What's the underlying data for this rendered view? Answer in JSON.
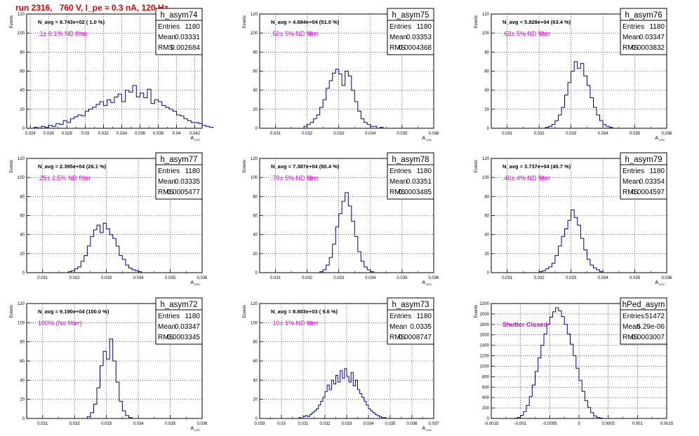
{
  "page": {
    "run_title": "run 2316,   760 V, I_pe ≈ 0.3 nA, 120 Hz"
  },
  "colors": {
    "histogram_line": "#000099",
    "annotation_magenta": "#e000e0",
    "title_red": "#e00000"
  },
  "chart_data": [
    {
      "type": "bar",
      "name": "h_asym74",
      "stats": {
        "Entries": "1180",
        "Mean": "0.03331",
        "RMS": "0.002684"
      },
      "navg_text": "N_avg = 8.743e+02 ( 1.0 %)",
      "filter_text": ".1± 0.1% ND filter",
      "ylabel": "Events",
      "xlabel": "A_{LED}",
      "xlim": [
        0.0236,
        0.0428
      ],
      "ylim": [
        0,
        120
      ],
      "xticks": [
        0.024,
        0.026,
        0.028,
        0.03,
        0.032,
        0.034,
        0.036,
        0.038,
        0.04,
        0.042
      ],
      "xticklabels": [
        "0.024",
        "0.026",
        "0.028",
        "0.03",
        "0.032",
        "0.034",
        "0.036",
        "0.038",
        "0.04",
        "0.042"
      ],
      "yticks": [
        0,
        20,
        40,
        60,
        80,
        100,
        120
      ],
      "grid": true,
      "bin_start": 0.0244,
      "bin_width": 0.0004,
      "values": [
        1,
        0,
        2,
        1,
        3,
        2,
        5,
        4,
        8,
        6,
        10,
        12,
        14,
        13,
        18,
        20,
        22,
        25,
        28,
        24,
        30,
        27,
        33,
        36,
        28,
        40,
        38,
        45,
        33,
        37,
        32,
        41,
        26,
        30,
        28,
        24,
        22,
        20,
        18,
        14,
        13,
        10,
        8,
        6,
        6,
        5,
        3,
        2,
        1
      ]
    },
    {
      "type": "bar",
      "name": "h_asym75",
      "stats": {
        "Entries": "1180",
        "Mean": "0.03353",
        "RMS": "0.0004368"
      },
      "navg_text": "N_avg = 4.684e+04 (51.0 %)",
      "filter_text": ".50± 5% ND filter",
      "ylabel": "Events",
      "xlabel": "A_{LED}",
      "xlim": [
        0.0305,
        0.036
      ],
      "ylim": [
        0,
        120
      ],
      "xticks": [
        0.031,
        0.032,
        0.033,
        0.034,
        0.035,
        0.036
      ],
      "xticklabels": [
        "0.031",
        "0.032",
        "0.033",
        "0.034",
        "0.035",
        "0.036"
      ],
      "yticks": [
        0,
        20,
        40,
        60,
        80,
        100,
        120
      ],
      "grid": true,
      "bin_start": 0.0318,
      "bin_width": 0.0001,
      "values": [
        0,
        2,
        4,
        6,
        10,
        14,
        22,
        30,
        42,
        50,
        58,
        62,
        57,
        45,
        60,
        55,
        40,
        28,
        18,
        10,
        6,
        4,
        2,
        2,
        0,
        1
      ]
    },
    {
      "type": "bar",
      "name": "h_asym76",
      "stats": {
        "Entries": "1180",
        "Mean": "0.03347",
        "RMS": "0.0003832"
      },
      "navg_text": "N_avg = 5.828e+04 (63.4 %)",
      "filter_text": ".63± 5% ND filter",
      "ylabel": "Events",
      "xlabel": "A_{LED}",
      "xlim": [
        0.0305,
        0.036
      ],
      "ylim": [
        0,
        120
      ],
      "xticks": [
        0.031,
        0.032,
        0.033,
        0.034,
        0.035,
        0.036
      ],
      "xticklabels": [
        "0.031",
        "0.032",
        "0.033",
        "0.034",
        "0.035",
        "0.036"
      ],
      "yticks": [
        0,
        20,
        40,
        60,
        80,
        100,
        120
      ],
      "grid": true,
      "bin_start": 0.0322,
      "bin_width": 0.0001,
      "values": [
        1,
        2,
        4,
        8,
        14,
        22,
        35,
        48,
        60,
        70,
        63,
        68,
        55,
        45,
        32,
        22,
        14,
        8,
        4,
        2,
        1
      ]
    },
    {
      "type": "bar",
      "name": "h_asym77",
      "stats": {
        "Entries": "1180",
        "Mean": "0.03335",
        "RMS": "0.0005477"
      },
      "navg_text": "N_avg = 2.395e+04 (26.1 %)",
      "filter_text": ".25± 2.5% ND filter",
      "ylabel": "Events",
      "xlabel": "A_{LED}",
      "xlim": [
        0.0305,
        0.036
      ],
      "ylim": [
        0,
        120
      ],
      "xticks": [
        0.031,
        0.032,
        0.033,
        0.034,
        0.035,
        0.036
      ],
      "xticklabels": [
        "0.031",
        "0.032",
        "0.033",
        "0.034",
        "0.035",
        "0.036"
      ],
      "yticks": [
        0,
        20,
        40,
        60,
        80,
        100,
        120
      ],
      "grid": true,
      "bin_start": 0.0318,
      "bin_width": 0.0001,
      "values": [
        1,
        2,
        4,
        6,
        12,
        18,
        28,
        38,
        45,
        50,
        42,
        52,
        46,
        40,
        36,
        28,
        18,
        14,
        8,
        5,
        3,
        2,
        1
      ]
    },
    {
      "type": "bar",
      "name": "h_asym78",
      "stats": {
        "Entries": "1180",
        "Mean": "0.03351",
        "RMS": "0.0003485"
      },
      "navg_text": "N_avg = 7.387e+04 (80.4 %)",
      "filter_text": ".79± 5% ND filter",
      "ylabel": "Events",
      "xlabel": "A_{LED}",
      "xlim": [
        0.0305,
        0.036
      ],
      "ylim": [
        0,
        120
      ],
      "xticks": [
        0.031,
        0.032,
        0.033,
        0.034,
        0.035,
        0.036
      ],
      "xticklabels": [
        "0.031",
        "0.032",
        "0.033",
        "0.034",
        "0.035",
        "0.036"
      ],
      "yticks": [
        0,
        20,
        40,
        60,
        80,
        100,
        120
      ],
      "grid": true,
      "bin_start": 0.0324,
      "bin_width": 0.0001,
      "values": [
        1,
        3,
        8,
        16,
        30,
        48,
        62,
        75,
        84,
        70,
        54,
        38,
        22,
        12,
        6,
        3,
        1
      ]
    },
    {
      "type": "bar",
      "name": "h_asym79",
      "stats": {
        "Entries": "1180",
        "Mean": "0.03354",
        "RMS": "0.0004597"
      },
      "navg_text": "N_avg = 3.737e+04 (40.7 %)",
      "filter_text": ".40± 4% ND filter",
      "ylabel": "Events",
      "xlabel": "A_{LED}",
      "xlim": [
        0.0305,
        0.036
      ],
      "ylim": [
        0,
        120
      ],
      "xticks": [
        0.031,
        0.032,
        0.033,
        0.034,
        0.035,
        0.036
      ],
      "xticklabels": [
        "0.031",
        "0.032",
        "0.033",
        "0.034",
        "0.035",
        "0.036"
      ],
      "yticks": [
        0,
        20,
        40,
        60,
        80,
        100,
        120
      ],
      "grid": true,
      "bin_start": 0.032,
      "bin_width": 0.0001,
      "values": [
        1,
        2,
        4,
        6,
        10,
        18,
        28,
        38,
        46,
        55,
        66,
        58,
        50,
        36,
        24,
        14,
        8,
        5,
        3,
        1
      ]
    },
    {
      "type": "bar",
      "name": "h_asym72",
      "stats": {
        "Entries": "1180",
        "Mean": "0.03347",
        "RMS": "0.0003345"
      },
      "navg_text": "N_avg = 9.190e+04 (100.0 %)",
      "filter_text": "100% (No filter)",
      "ylabel": "Events",
      "xlabel": "A_{LED}",
      "xlim": [
        0.0305,
        0.036
      ],
      "ylim": [
        0,
        120
      ],
      "xticks": [
        0.031,
        0.032,
        0.033,
        0.034,
        0.035,
        0.036
      ],
      "xticklabels": [
        "0.031",
        "0.032",
        "0.033",
        "0.034",
        "0.035",
        "0.036"
      ],
      "yticks": [
        0,
        20,
        40,
        60,
        80,
        100,
        120
      ],
      "grid": true,
      "bin_start": 0.0324,
      "bin_width": 0.0001,
      "values": [
        2,
        6,
        15,
        32,
        55,
        70,
        62,
        83,
        60,
        38,
        18,
        8,
        3,
        1
      ]
    },
    {
      "type": "bar",
      "name": "h_asym73",
      "stats": {
        "Entries": "1180",
        "Mean": "0.0335",
        "RMS": "0.0008747"
      },
      "navg_text": "N_avg = 8.803e+03 ( 9.6 %)",
      "filter_text": ".10± 1% ND filter",
      "ylabel": "Events",
      "xlabel": "A_{LED}",
      "xlim": [
        0.029,
        0.037
      ],
      "ylim": [
        0,
        120
      ],
      "xticks": [
        0.029,
        0.03,
        0.031,
        0.032,
        0.033,
        0.034,
        0.035,
        0.036,
        0.037
      ],
      "xticklabels": [
        "0.029",
        "0.03",
        "0.031",
        "0.032",
        "0.033",
        "0.034",
        "0.035",
        "0.036",
        "0.037"
      ],
      "yticks": [
        0,
        20,
        40,
        60,
        80,
        100,
        120
      ],
      "grid": true,
      "bin_start": 0.0308,
      "bin_width": 0.0001,
      "values": [
        1,
        0,
        2,
        3,
        2,
        4,
        6,
        8,
        10,
        14,
        18,
        22,
        28,
        35,
        30,
        40,
        36,
        45,
        38,
        50,
        42,
        52,
        44,
        38,
        48,
        34,
        40,
        30,
        26,
        22,
        18,
        14,
        10,
        8,
        6,
        4,
        3,
        2,
        1,
        1
      ]
    },
    {
      "type": "bar",
      "name": "hPed_asym",
      "stats": {
        "Entries": "51472",
        "Mean": "5.29e-06",
        "RMS": "0.0003007"
      },
      "navg_text": "",
      "filter_text": "Shutter Closed",
      "ylabel": "Events",
      "xlabel": "",
      "xlim": [
        -0.0015,
        0.0015
      ],
      "ylim": [
        0,
        2200
      ],
      "xticks": [
        -0.0015,
        -0.001,
        -0.0005,
        0,
        0.0005,
        0.001,
        0.0015
      ],
      "xticklabels": [
        "-0.0015",
        "-0.001",
        "-0.0005",
        "0",
        "0.0005",
        "0.001",
        "0.0015"
      ],
      "yticks": [
        0,
        200,
        400,
        600,
        800,
        1000,
        1200,
        1400,
        1600,
        1800,
        2000,
        2200
      ],
      "grid": true,
      "bin_start": -0.0011,
      "bin_width": 5e-05,
      "values": [
        5,
        20,
        60,
        130,
        250,
        420,
        640,
        900,
        1160,
        1400,
        1620,
        1800,
        1940,
        2040,
        2120,
        2060,
        1950,
        1800,
        1620,
        1420,
        1200,
        960,
        730,
        520,
        340,
        210,
        110,
        50,
        20,
        8
      ]
    }
  ]
}
